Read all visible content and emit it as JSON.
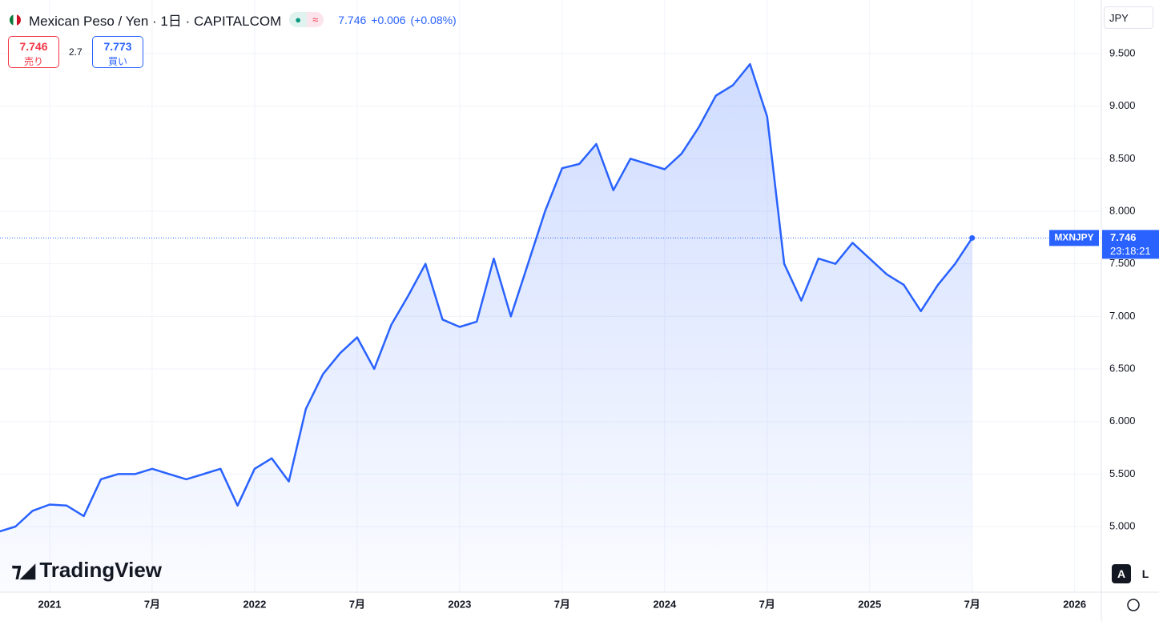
{
  "header": {
    "symbol": "Mexican Peso / Yen · 1日 · CAPITALCOM",
    "last": 7.746,
    "change": "+0.006",
    "change_pct": "(+0.08%)",
    "sell_price": 7.746,
    "sell_label": "売り",
    "spread": 2.7,
    "buy_price": 7.773,
    "buy_label": "買い",
    "currency": "JPY"
  },
  "chart_data": {
    "type": "area",
    "x": [
      "2020-10",
      "2020-11",
      "2020-12",
      "2021-01",
      "2021-02",
      "2021-03",
      "2021-04",
      "2021-05",
      "2021-06",
      "2021-07",
      "2021-08",
      "2021-09",
      "2021-10",
      "2021-11",
      "2021-12",
      "2022-01",
      "2022-02",
      "2022-03",
      "2022-04",
      "2022-05",
      "2022-06",
      "2022-07",
      "2022-08",
      "2022-09",
      "2022-10",
      "2022-11",
      "2022-12",
      "2023-01",
      "2023-02",
      "2023-03",
      "2023-04",
      "2023-05",
      "2023-06",
      "2023-07",
      "2023-08",
      "2023-09",
      "2023-10",
      "2023-11",
      "2023-12",
      "2024-01",
      "2024-02",
      "2024-03",
      "2024-04",
      "2024-05",
      "2024-06",
      "2024-07",
      "2024-08",
      "2024-09",
      "2024-10",
      "2024-11",
      "2024-12",
      "2025-01",
      "2025-02",
      "2025-03",
      "2025-04",
      "2025-05",
      "2025-06",
      "2025-07"
    ],
    "series": [
      {
        "name": "MXNJPY",
        "color": "#2962ff",
        "values": [
          4.95,
          5.0,
          5.15,
          5.21,
          5.2,
          5.1,
          5.45,
          5.5,
          5.5,
          5.55,
          5.5,
          5.45,
          5.5,
          5.55,
          5.2,
          5.55,
          5.65,
          5.43,
          6.12,
          6.45,
          6.65,
          6.8,
          6.5,
          6.92,
          7.2,
          7.5,
          6.97,
          6.9,
          6.95,
          7.55,
          7.0,
          7.5,
          8.0,
          8.41,
          8.45,
          8.64,
          8.2,
          8.5,
          8.45,
          8.4,
          8.55,
          8.8,
          9.1,
          9.2,
          9.4,
          8.9,
          7.5,
          7.15,
          7.55,
          7.5,
          7.7,
          7.55,
          7.4,
          7.3,
          7.05,
          7.3,
          7.5,
          7.746
        ]
      }
    ],
    "xlim": [
      "2020-10",
      "2026-02"
    ],
    "xticks": [
      {
        "value": "2021-01",
        "label": "2021"
      },
      {
        "value": "2021-07",
        "label": "7月"
      },
      {
        "value": "2022-01",
        "label": "2022"
      },
      {
        "value": "2022-07",
        "label": "7月"
      },
      {
        "value": "2023-01",
        "label": "2023"
      },
      {
        "value": "2023-07",
        "label": "7月"
      },
      {
        "value": "2024-01",
        "label": "2024"
      },
      {
        "value": "2024-07",
        "label": "7月"
      },
      {
        "value": "2025-01",
        "label": "2025"
      },
      {
        "value": "2025-07",
        "label": "7月"
      },
      {
        "value": "2026-01",
        "label": "2026"
      }
    ],
    "ylim": [
      4.376,
      10.01
    ],
    "yticks": [
      {
        "value": 5,
        "label": "5.000"
      },
      {
        "value": 5.5,
        "label": "5.500"
      },
      {
        "value": 6,
        "label": "6.000"
      },
      {
        "value": 6.5,
        "label": "6.500"
      },
      {
        "value": 7,
        "label": "7.000"
      },
      {
        "value": 7.5,
        "label": "7.500"
      },
      {
        "value": 8,
        "label": "8.000"
      },
      {
        "value": 8.5,
        "label": "8.500"
      },
      {
        "value": 9,
        "label": "9.000"
      },
      {
        "value": 9.5,
        "label": "9.500"
      }
    ],
    "grid": true,
    "last_price": 7.746,
    "countdown": "23:18:21",
    "logo": "TradingView",
    "scale_buttons": [
      "A",
      "L"
    ]
  }
}
